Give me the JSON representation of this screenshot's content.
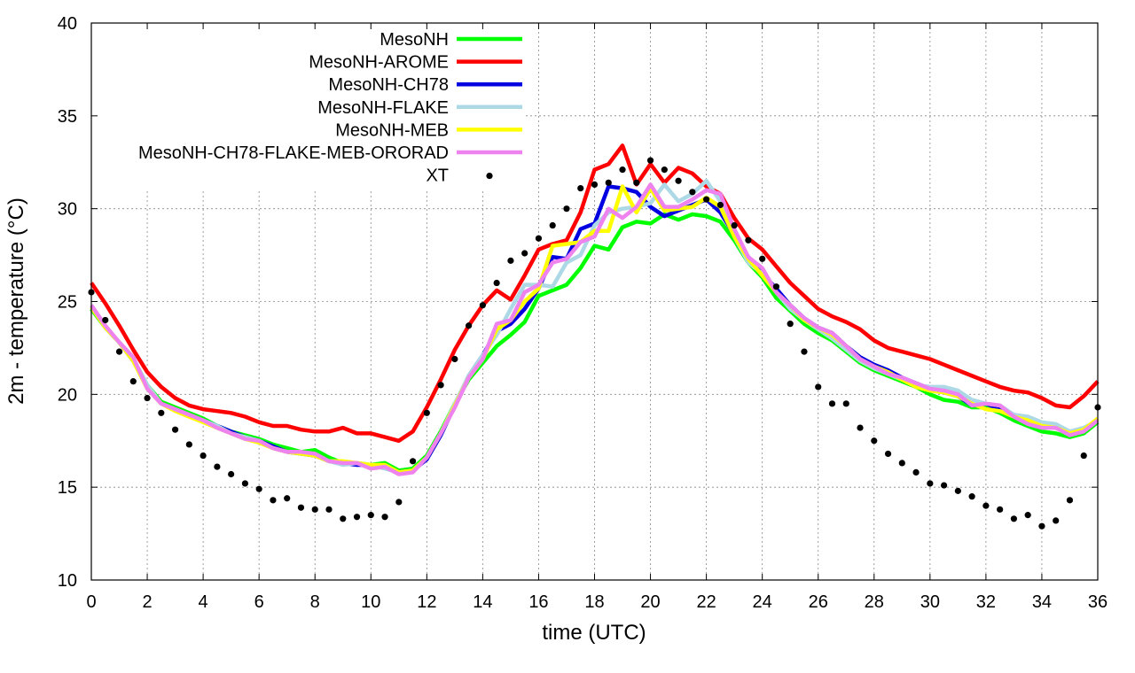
{
  "chart_data": {
    "type": "line",
    "title": "",
    "xlabel": "time (UTC)",
    "ylabel": "2m - temperature (°C)",
    "xlim": [
      0,
      36
    ],
    "ylim": [
      10,
      40
    ],
    "xticks": [
      "0",
      "2",
      "4",
      "6",
      "8",
      "10",
      "12",
      "14",
      "16",
      "18",
      "20",
      "22",
      "24",
      "26",
      "28",
      "30",
      "32",
      "34",
      "36"
    ],
    "yticks": [
      "10",
      "15",
      "20",
      "25",
      "30",
      "35",
      "40"
    ],
    "grid": true,
    "legend_position": "top-left",
    "series": [
      {
        "name": "MesoNH",
        "color": "#00ff00",
        "style": "line",
        "x": [
          0,
          0.5,
          1,
          1.5,
          2,
          2.5,
          3,
          3.5,
          4,
          4.5,
          5,
          5.5,
          6,
          6.5,
          7,
          7.5,
          8,
          8.5,
          9,
          9.5,
          10,
          10.5,
          11,
          11.5,
          12,
          12.5,
          13,
          13.5,
          14,
          14.5,
          15,
          15.5,
          16,
          16.5,
          17,
          17.5,
          18,
          18.5,
          19,
          19.5,
          20,
          20.5,
          21,
          21.5,
          22,
          22.5,
          23,
          23.5,
          24,
          24.5,
          25,
          25.5,
          26,
          26.5,
          27,
          27.5,
          28,
          28.5,
          29,
          29.5,
          30,
          30.5,
          31,
          31.5,
          32,
          32.5,
          33,
          33.5,
          34,
          34.5,
          35,
          35.5,
          36
        ],
        "y": [
          24.6,
          23.6,
          22.8,
          21.9,
          20.5,
          19.6,
          19.3,
          19.0,
          18.7,
          18.3,
          18.0,
          17.8,
          17.6,
          17.3,
          17.1,
          16.9,
          17.0,
          16.6,
          16.3,
          16.3,
          16.2,
          16.3,
          15.9,
          16.0,
          16.7,
          18.0,
          19.5,
          20.8,
          21.7,
          22.6,
          23.2,
          23.9,
          25.3,
          25.6,
          25.9,
          26.8,
          28.0,
          27.8,
          29.0,
          29.3,
          29.2,
          29.7,
          29.4,
          29.7,
          29.6,
          29.3,
          28.3,
          27.1,
          26.3,
          25.2,
          24.5,
          23.8,
          23.3,
          22.9,
          22.3,
          21.7,
          21.3,
          21.0,
          20.7,
          20.4,
          20.0,
          19.7,
          19.6,
          19.3,
          19.3,
          19.0,
          18.6,
          18.3,
          18.0,
          17.9,
          17.7,
          17.9,
          18.5
        ]
      },
      {
        "name": "MesoNH-AROME",
        "color": "#ff0000",
        "style": "line",
        "x": [
          0,
          0.5,
          1,
          1.5,
          2,
          2.5,
          3,
          3.5,
          4,
          4.5,
          5,
          5.5,
          6,
          6.5,
          7,
          7.5,
          8,
          8.5,
          9,
          9.5,
          10,
          10.5,
          11,
          11.5,
          12,
          12.5,
          13,
          13.5,
          14,
          14.5,
          15,
          15.5,
          16,
          16.5,
          17,
          17.5,
          18,
          18.5,
          19,
          19.5,
          20,
          20.5,
          21,
          21.5,
          22,
          22.5,
          23,
          23.5,
          24,
          24.5,
          25,
          25.5,
          26,
          26.5,
          27,
          27.5,
          28,
          28.5,
          29,
          29.5,
          30,
          30.5,
          31,
          31.5,
          32,
          32.5,
          33,
          33.5,
          34,
          34.5,
          35,
          35.5,
          36
        ],
        "y": [
          26.0,
          24.9,
          23.7,
          22.4,
          21.2,
          20.4,
          19.8,
          19.4,
          19.2,
          19.1,
          19.0,
          18.8,
          18.5,
          18.3,
          18.3,
          18.1,
          18.0,
          18.0,
          18.2,
          17.9,
          17.9,
          17.7,
          17.5,
          18.0,
          19.3,
          20.8,
          22.4,
          23.7,
          24.8,
          25.6,
          25.1,
          26.4,
          27.8,
          28.1,
          28.3,
          29.8,
          32.1,
          32.4,
          33.4,
          31.3,
          32.4,
          31.4,
          32.2,
          31.9,
          31.2,
          30.8,
          29.5,
          28.4,
          27.8,
          26.9,
          26.0,
          25.3,
          24.6,
          24.2,
          23.9,
          23.5,
          22.9,
          22.5,
          22.3,
          22.1,
          21.9,
          21.6,
          21.3,
          21.0,
          20.7,
          20.4,
          20.2,
          20.1,
          19.8,
          19.4,
          19.3,
          19.9,
          20.7
        ]
      },
      {
        "name": "MesoNH-CH78",
        "color": "#0000e0",
        "style": "line",
        "x": [
          0,
          0.5,
          1,
          1.5,
          2,
          2.5,
          3,
          3.5,
          4,
          4.5,
          5,
          5.5,
          6,
          6.5,
          7,
          7.5,
          8,
          8.5,
          9,
          9.5,
          10,
          10.5,
          11,
          11.5,
          12,
          12.5,
          13,
          13.5,
          14,
          14.5,
          15,
          15.5,
          16,
          16.5,
          17,
          17.5,
          18,
          18.5,
          19,
          19.5,
          20,
          20.5,
          21,
          21.5,
          22,
          22.5,
          23,
          23.5,
          24,
          24.5,
          25,
          25.5,
          26,
          26.5,
          27,
          27.5,
          28,
          28.5,
          29,
          29.5,
          30,
          30.5,
          31,
          31.5,
          32,
          32.5,
          33,
          33.5,
          34,
          34.5,
          35,
          35.5,
          36
        ],
        "y": [
          24.7,
          23.6,
          22.8,
          21.8,
          20.4,
          19.5,
          19.2,
          18.9,
          18.6,
          18.3,
          18.0,
          17.7,
          17.5,
          17.2,
          16.9,
          16.8,
          16.7,
          16.4,
          16.3,
          16.2,
          16.2,
          16.1,
          15.8,
          15.9,
          16.5,
          17.8,
          19.4,
          21.0,
          22.1,
          23.4,
          23.8,
          24.6,
          25.7,
          27.4,
          27.3,
          28.9,
          29.2,
          31.2,
          31.1,
          30.9,
          30.1,
          29.6,
          29.9,
          30.2,
          30.5,
          29.8,
          28.6,
          27.4,
          26.5,
          25.7,
          24.8,
          24.1,
          23.6,
          23.3,
          22.6,
          22.0,
          21.6,
          21.3,
          20.9,
          20.6,
          20.3,
          20.1,
          19.9,
          19.4,
          19.5,
          19.2,
          18.9,
          18.5,
          18.3,
          18.2,
          17.9,
          18.1,
          18.6
        ]
      },
      {
        "name": "MesoNH-FLAKE",
        "color": "#add8e6",
        "style": "line",
        "x": [
          0,
          0.5,
          1,
          1.5,
          2,
          2.5,
          3,
          3.5,
          4,
          4.5,
          5,
          5.5,
          6,
          6.5,
          7,
          7.5,
          8,
          8.5,
          9,
          9.5,
          10,
          10.5,
          11,
          11.5,
          12,
          12.5,
          13,
          13.5,
          14,
          14.5,
          15,
          15.5,
          16,
          16.5,
          17,
          17.5,
          18,
          18.5,
          19,
          19.5,
          20,
          20.5,
          21,
          21.5,
          22,
          22.5,
          23,
          23.5,
          24,
          24.5,
          25,
          25.5,
          26,
          26.5,
          27,
          27.5,
          28,
          28.5,
          29,
          29.5,
          30,
          30.5,
          31,
          31.5,
          32,
          32.5,
          33,
          33.5,
          34,
          34.5,
          35,
          35.5,
          36
        ],
        "y": [
          24.7,
          23.6,
          22.8,
          21.9,
          20.5,
          19.5,
          19.2,
          18.9,
          18.6,
          18.3,
          17.9,
          17.7,
          17.5,
          17.1,
          16.9,
          16.9,
          16.7,
          16.4,
          16.2,
          16.3,
          16.2,
          16.0,
          15.8,
          15.9,
          16.6,
          17.9,
          19.5,
          21.0,
          22.1,
          23.2,
          24.6,
          25.9,
          25.9,
          25.8,
          27.1,
          27.5,
          29.1,
          29.8,
          30.0,
          30.1,
          30.3,
          31.3,
          30.4,
          30.8,
          31.5,
          30.4,
          28.5,
          27.1,
          26.5,
          25.5,
          24.6,
          24.0,
          23.5,
          23.0,
          22.4,
          21.8,
          21.4,
          21.1,
          20.8,
          20.5,
          20.4,
          20.4,
          20.2,
          19.7,
          19.5,
          19.4,
          18.9,
          18.8,
          18.5,
          18.4,
          18.0,
          18.2,
          18.6
        ]
      },
      {
        "name": "MesoNH-MEB",
        "color": "#ffff00",
        "style": "line",
        "x": [
          0,
          0.5,
          1,
          1.5,
          2,
          2.5,
          3,
          3.5,
          4,
          4.5,
          5,
          5.5,
          6,
          6.5,
          7,
          7.5,
          8,
          8.5,
          9,
          9.5,
          10,
          10.5,
          11,
          11.5,
          12,
          12.5,
          13,
          13.5,
          14,
          14.5,
          15,
          15.5,
          16,
          16.5,
          17,
          17.5,
          18,
          18.5,
          19,
          19.5,
          20,
          20.5,
          21,
          21.5,
          22,
          22.5,
          23,
          23.5,
          24,
          24.5,
          25,
          25.5,
          26,
          26.5,
          27,
          27.5,
          28,
          28.5,
          29,
          29.5,
          30,
          30.5,
          31,
          31.5,
          32,
          32.5,
          33,
          33.5,
          34,
          34.5,
          35,
          35.5,
          36
        ],
        "y": [
          24.7,
          23.6,
          22.8,
          21.8,
          20.3,
          19.5,
          19.1,
          18.8,
          18.5,
          18.2,
          17.9,
          17.6,
          17.4,
          17.1,
          16.9,
          16.8,
          16.7,
          16.4,
          16.4,
          16.3,
          16.2,
          16.2,
          15.8,
          15.9,
          16.6,
          17.9,
          19.4,
          20.9,
          21.9,
          23.5,
          24.0,
          25.0,
          25.7,
          28.0,
          28.1,
          28.2,
          28.8,
          28.8,
          31.2,
          29.8,
          31.1,
          29.9,
          30.0,
          30.1,
          30.6,
          30.1,
          28.5,
          27.3,
          26.4,
          25.5,
          24.8,
          24.0,
          23.6,
          23.2,
          22.6,
          21.9,
          21.5,
          21.2,
          20.8,
          20.4,
          20.2,
          20.1,
          19.9,
          19.5,
          19.2,
          19.1,
          18.8,
          18.6,
          18.3,
          18.2,
          17.9,
          18.1,
          18.7
        ]
      },
      {
        "name": "MesoNH-CH78-FLAKE-MEB-ORORAD",
        "color": "#ee82ee",
        "style": "line",
        "x": [
          0,
          0.5,
          1,
          1.5,
          2,
          2.5,
          3,
          3.5,
          4,
          4.5,
          5,
          5.5,
          6,
          6.5,
          7,
          7.5,
          8,
          8.5,
          9,
          9.5,
          10,
          10.5,
          11,
          11.5,
          12,
          12.5,
          13,
          13.5,
          14,
          14.5,
          15,
          15.5,
          16,
          16.5,
          17,
          17.5,
          18,
          18.5,
          19,
          19.5,
          20,
          20.5,
          21,
          21.5,
          22,
          22.5,
          23,
          23.5,
          24,
          24.5,
          25,
          25.5,
          26,
          26.5,
          27,
          27.5,
          28,
          28.5,
          29,
          29.5,
          30,
          30.5,
          31,
          31.5,
          32,
          32.5,
          33,
          33.5,
          34,
          34.5,
          35,
          35.5,
          36
        ],
        "y": [
          24.8,
          23.7,
          22.8,
          22.0,
          20.3,
          19.5,
          19.2,
          18.9,
          18.6,
          18.2,
          17.9,
          17.6,
          17.5,
          17.1,
          16.9,
          16.9,
          16.8,
          16.4,
          16.3,
          16.3,
          16.0,
          16.1,
          15.7,
          15.8,
          16.6,
          17.9,
          19.3,
          20.9,
          21.9,
          23.8,
          24.0,
          25.5,
          25.9,
          27.1,
          27.3,
          28.2,
          28.5,
          30.0,
          29.5,
          30.1,
          31.3,
          30.1,
          30.1,
          30.5,
          31.0,
          30.8,
          28.9,
          27.4,
          26.8,
          25.5,
          24.8,
          24.1,
          23.6,
          23.3,
          22.6,
          21.9,
          21.5,
          21.1,
          20.9,
          20.6,
          20.3,
          20.2,
          20.0,
          19.4,
          19.5,
          19.4,
          18.8,
          18.4,
          18.2,
          18.2,
          17.8,
          18.0,
          18.6
        ]
      },
      {
        "name": "XT",
        "color": "#000000",
        "style": "points",
        "x": [
          0,
          0.5,
          1,
          1.5,
          2,
          2.5,
          3,
          3.5,
          4,
          4.5,
          5,
          5.5,
          6,
          6.5,
          7,
          7.5,
          8,
          8.5,
          9,
          9.5,
          10,
          10.5,
          11,
          11.5,
          12,
          12.5,
          13,
          13.5,
          14,
          14.5,
          15,
          15.5,
          16,
          16.5,
          17,
          17.5,
          18,
          18.5,
          19,
          19.5,
          20,
          20.5,
          21,
          21.5,
          22,
          22.5,
          23,
          23.5,
          24,
          24.5,
          25,
          25.5,
          26,
          26.5,
          27,
          27.5,
          28,
          28.5,
          29,
          29.5,
          30,
          30.5,
          31,
          31.5,
          32,
          32.5,
          33,
          33.5,
          34,
          34.5,
          35,
          35.5,
          36
        ],
        "y": [
          25.5,
          24.0,
          22.3,
          20.7,
          19.8,
          19.0,
          18.1,
          17.3,
          16.7,
          16.1,
          15.7,
          15.2,
          14.9,
          14.3,
          14.4,
          13.9,
          13.8,
          13.8,
          13.3,
          13.4,
          13.5,
          13.4,
          14.2,
          16.4,
          19.0,
          20.5,
          21.9,
          23.7,
          24.8,
          26.0,
          27.2,
          27.6,
          28.4,
          29.1,
          30.0,
          31.1,
          31.3,
          31.4,
          32.1,
          31.4,
          32.6,
          32.1,
          31.5,
          30.9,
          30.5,
          30.2,
          29.1,
          28.3,
          27.3,
          25.8,
          23.8,
          22.3,
          20.4,
          19.5,
          19.5,
          18.2,
          17.5,
          16.8,
          16.3,
          15.8,
          15.2,
          15.1,
          14.8,
          14.5,
          14.0,
          13.8,
          13.3,
          13.5,
          12.9,
          13.2,
          14.3,
          16.7,
          19.3
        ]
      }
    ]
  }
}
